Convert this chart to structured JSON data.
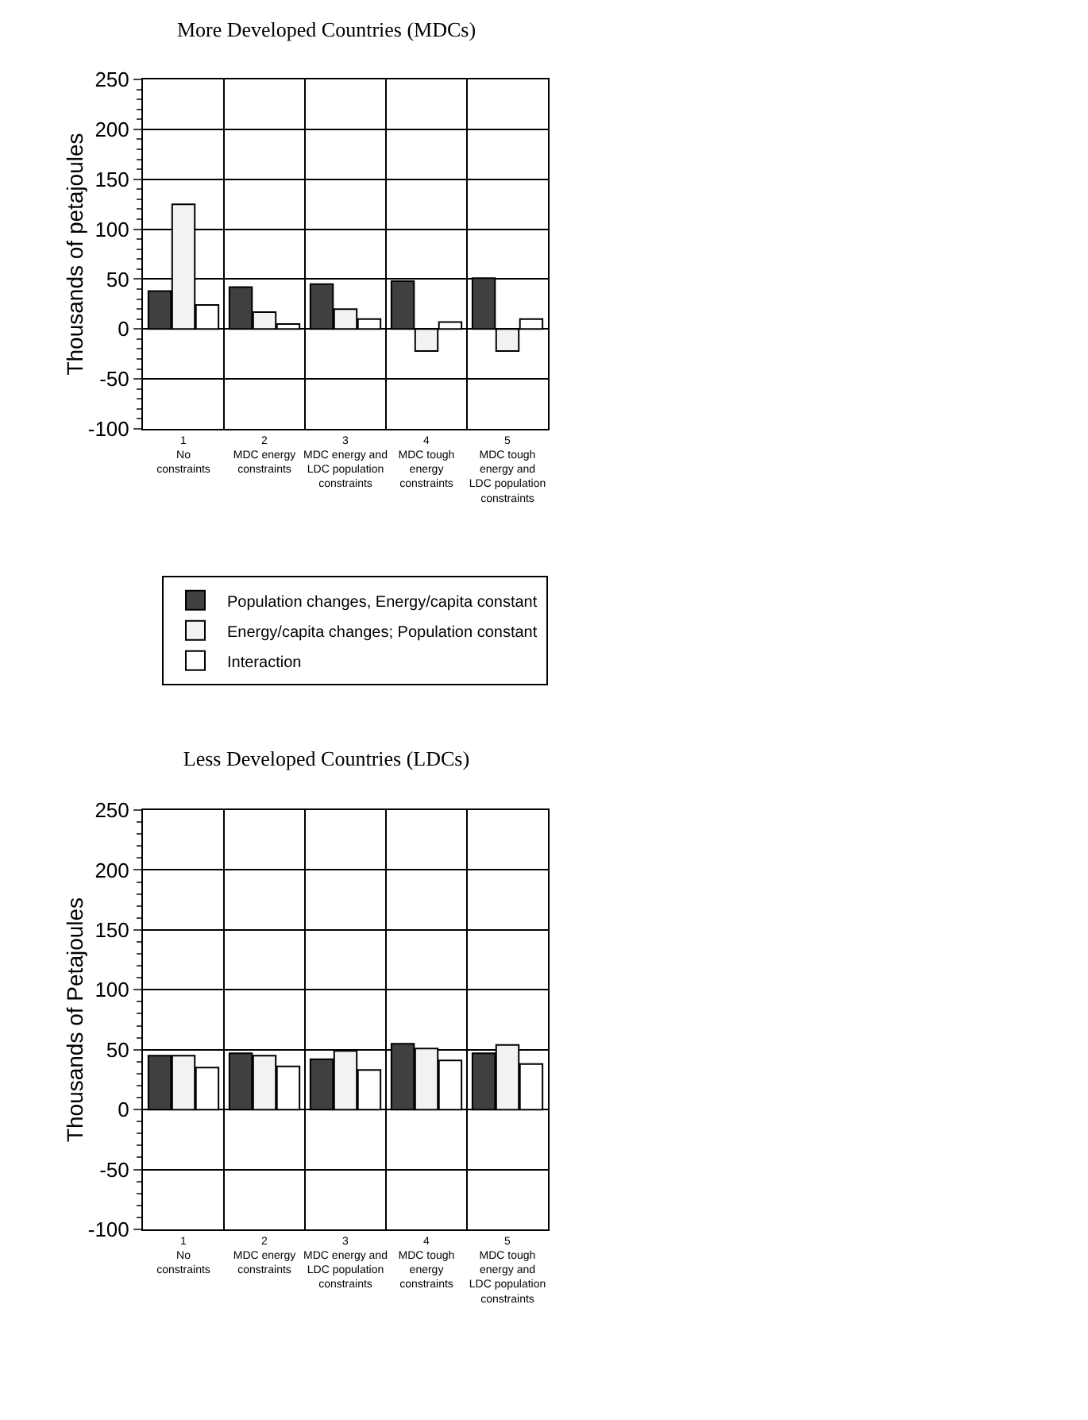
{
  "chart_data": [
    {
      "type": "bar",
      "title": "More Developed Countries (MDCs)",
      "ylabel": "Thousands of petajoules",
      "categories": [
        "1\nNo\nconstraints",
        "2\nMDC energy\nconstraints",
        "3\nMDC energy and\nLDC population\nconstraints",
        "4\nMDC tough\nenergy\nconstraints",
        "5\nMDC tough\nenergy and\nLDC population\nconstraints"
      ],
      "series": [
        {
          "name": "Population changes, Energy/capita constant",
          "color": "#404040",
          "values": [
            38,
            42,
            45,
            48,
            51
          ]
        },
        {
          "name": "Energy/capita changes; Population constant",
          "color": "#f2f2f2",
          "values": [
            125,
            17,
            20,
            -22,
            -22
          ]
        },
        {
          "name": "Interaction",
          "color": "#ffffff",
          "values": [
            24,
            5,
            10,
            7,
            10
          ]
        }
      ],
      "ylim": [
        -100,
        250
      ],
      "yticks": [
        -100,
        -50,
        0,
        50,
        100,
        150,
        200,
        250
      ],
      "grid": true,
      "legend": "bottom right"
    },
    {
      "type": "bar",
      "title": "Less Developed Countries (LDCs)",
      "ylabel": "Thousands of Petajoules",
      "categories": [
        "1\nNo\nconstraints",
        "2\nMDC energy\nconstraints",
        "3\nMDC energy and\nLDC population\nconstraints",
        "4\nMDC tough\nenergy\nconstraints",
        "5\nMDC tough\nenergy and\nLDC population\nconstraints"
      ],
      "series": [
        {
          "color": "#404040",
          "values": [
            45,
            47,
            42,
            55,
            47
          ]
        },
        {
          "color": "#f2f2f2",
          "values": [
            45,
            45,
            49,
            51,
            54
          ]
        },
        {
          "color": "#ffffff",
          "values": [
            35,
            36,
            33,
            41,
            38
          ]
        }
      ],
      "ylim": [
        -100,
        250
      ],
      "yticks": [
        -100,
        -50,
        0,
        50,
        100,
        150,
        200,
        250
      ],
      "grid": true,
      "legend": false
    }
  ]
}
